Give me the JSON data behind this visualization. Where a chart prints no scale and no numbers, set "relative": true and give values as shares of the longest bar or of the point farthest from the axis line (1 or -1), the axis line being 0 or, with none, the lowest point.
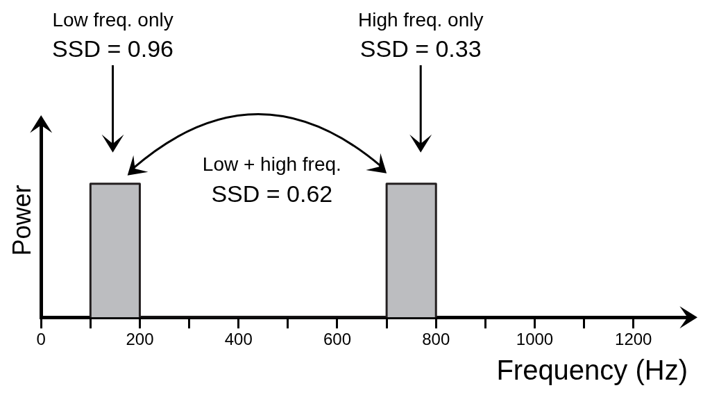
{
  "chart_data": {
    "type": "area",
    "relative": true,
    "x": [
      100,
      100,
      200,
      200,
      700,
      700,
      800,
      800
    ],
    "values": [
      0,
      1,
      1,
      0,
      0,
      1,
      1,
      0
    ],
    "color": "#bcbdc0",
    "xlabel": "Frequency (Hz)",
    "ylabel": "Power",
    "xlim": [
      0,
      1310
    ],
    "xticks": [
      0,
      {
        "value": 100,
        "label": null
      },
      200,
      {
        "value": 300,
        "label": null
      },
      400,
      {
        "value": 500,
        "label": null
      },
      600,
      {
        "value": 700,
        "label": null
      },
      800,
      {
        "value": 900,
        "label": null
      },
      1000,
      {
        "value": 1100,
        "label": null
      },
      1200
    ],
    "grid": false,
    "legend": false,
    "annotations": [
      "Low freq. only\nSSD = 0.96",
      "High freq. only\nSSD = 0.33",
      "Low + high freq.\nSSD = 0.62"
    ]
  }
}
